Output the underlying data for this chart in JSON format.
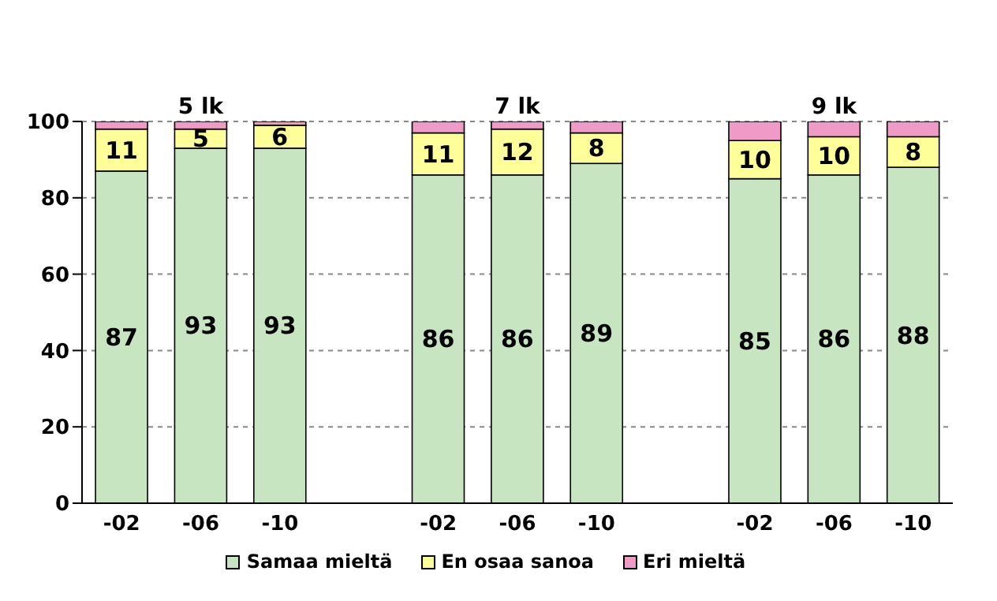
{
  "chart_data": {
    "type": "bar",
    "stacked": true,
    "categories": [
      "-02",
      "-06",
      "-10",
      null,
      "-02",
      "-06",
      "-10",
      null,
      "-02",
      "-06",
      "-10"
    ],
    "series": [
      {
        "name": "Samaa mieltä",
        "color": "#c6e5c0",
        "values": [
          87,
          93,
          93,
          null,
          86,
          86,
          89,
          null,
          85,
          86,
          88
        ],
        "value_labels": [
          "87",
          "93",
          "93",
          null,
          "86",
          "86",
          "89",
          null,
          "85",
          "86",
          "88"
        ]
      },
      {
        "name": "En osaa sanoa",
        "color": "#ffff99",
        "values": [
          11,
          5,
          6,
          null,
          11,
          12,
          8,
          null,
          10,
          10,
          8
        ],
        "value_labels": [
          "11",
          "5",
          "6",
          null,
          "11",
          "12",
          "8",
          null,
          "10",
          "10",
          "8"
        ]
      },
      {
        "name": "Eri mieltä",
        "color": "#f09ac8",
        "values": [
          2,
          2,
          1,
          null,
          3,
          2,
          3,
          null,
          5,
          4,
          4
        ]
      }
    ],
    "annotations": [
      "5 lk",
      "7 lk",
      "9 lk"
    ],
    "ylim": [
      0,
      100
    ],
    "yticks": [
      0,
      20,
      40,
      60,
      80,
      100
    ],
    "grid": "y",
    "legend": "bottom"
  }
}
